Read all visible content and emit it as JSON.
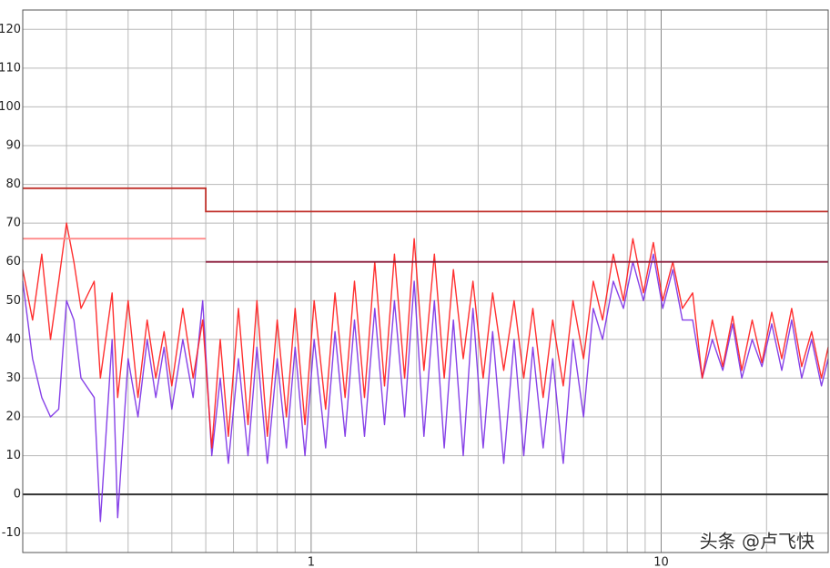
{
  "chart_data": {
    "type": "line",
    "xlim": [
      0.15,
      30
    ],
    "xscale": "log",
    "xticks": [
      1,
      10
    ],
    "minor_xticks": [
      0.2,
      0.3,
      0.4,
      0.5,
      0.6,
      0.7,
      0.8,
      0.9,
      2,
      3,
      4,
      5,
      6,
      7,
      8,
      9,
      20,
      30
    ],
    "ylim": [
      -15,
      125
    ],
    "yticks": [
      -10,
      0,
      10,
      20,
      30,
      40,
      50,
      60,
      70,
      80,
      90,
      100,
      110,
      120
    ],
    "grid": true,
    "x": [
      0.15,
      0.16,
      0.17,
      0.18,
      0.19,
      0.2,
      0.21,
      0.22,
      0.24,
      0.25,
      0.27,
      0.28,
      0.3,
      0.32,
      0.34,
      0.36,
      0.38,
      0.4,
      0.43,
      0.46,
      0.49,
      0.52,
      0.55,
      0.58,
      0.62,
      0.66,
      0.7,
      0.75,
      0.8,
      0.85,
      0.9,
      0.96,
      1.02,
      1.1,
      1.17,
      1.25,
      1.33,
      1.42,
      1.52,
      1.62,
      1.73,
      1.85,
      1.97,
      2.1,
      2.25,
      2.4,
      2.55,
      2.72,
      2.9,
      3.1,
      3.3,
      3.55,
      3.8,
      4.05,
      4.3,
      4.6,
      4.9,
      5.25,
      5.6,
      6,
      6.4,
      6.8,
      7.3,
      7.8,
      8.3,
      8.9,
      9.5,
      10.1,
      10.8,
      11.5,
      12.3,
      13.1,
      14,
      15,
      16,
      17,
      18.2,
      19.4,
      20.7,
      22.1,
      23.6,
      25.2,
      26.9,
      28.7,
      30
    ],
    "series": [
      {
        "color": "#7a2ee6",
        "values": [
          55,
          35,
          25,
          20,
          22,
          50,
          45,
          30,
          25,
          -7,
          40,
          -6,
          35,
          20,
          40,
          25,
          38,
          22,
          40,
          25,
          50,
          10,
          30,
          8,
          35,
          10,
          38,
          8,
          35,
          12,
          38,
          10,
          40,
          12,
          42,
          15,
          45,
          15,
          48,
          18,
          50,
          20,
          55,
          15,
          50,
          12,
          45,
          10,
          48,
          12,
          42,
          8,
          40,
          10,
          38,
          12,
          35,
          8,
          40,
          20,
          48,
          40,
          55,
          48,
          60,
          50,
          62,
          48,
          58,
          45,
          45,
          30,
          40,
          32,
          44,
          30,
          40,
          33,
          44,
          32,
          45,
          30,
          40,
          28,
          35
        ]
      },
      {
        "color": "#ff1a1a",
        "values": [
          58,
          45,
          62,
          40,
          55,
          70,
          60,
          48,
          55,
          30,
          52,
          25,
          50,
          25,
          45,
          30,
          42,
          28,
          48,
          30,
          45,
          12,
          40,
          15,
          48,
          18,
          50,
          15,
          45,
          20,
          48,
          18,
          50,
          22,
          52,
          25,
          55,
          25,
          60,
          28,
          62,
          30,
          66,
          32,
          62,
          30,
          58,
          35,
          55,
          30,
          52,
          32,
          50,
          30,
          48,
          25,
          45,
          28,
          50,
          35,
          55,
          45,
          62,
          50,
          66,
          52,
          65,
          50,
          60,
          48,
          52,
          30,
          45,
          33,
          46,
          32,
          45,
          34,
          47,
          35,
          48,
          33,
          42,
          30,
          38
        ]
      }
    ],
    "limit_lines": [
      {
        "color": "#c0302a",
        "x": [
          0.15,
          0.5,
          0.5,
          30
        ],
        "values": [
          79,
          79,
          73,
          73
        ]
      },
      {
        "color": "#ff8a8a",
        "x": [
          0.15,
          0.5
        ],
        "values": [
          66,
          66
        ]
      },
      {
        "color": "#8a1a3a",
        "x": [
          0.5,
          30
        ],
        "values": [
          60,
          60
        ]
      }
    ],
    "watermark": "头条 @卢飞快"
  }
}
